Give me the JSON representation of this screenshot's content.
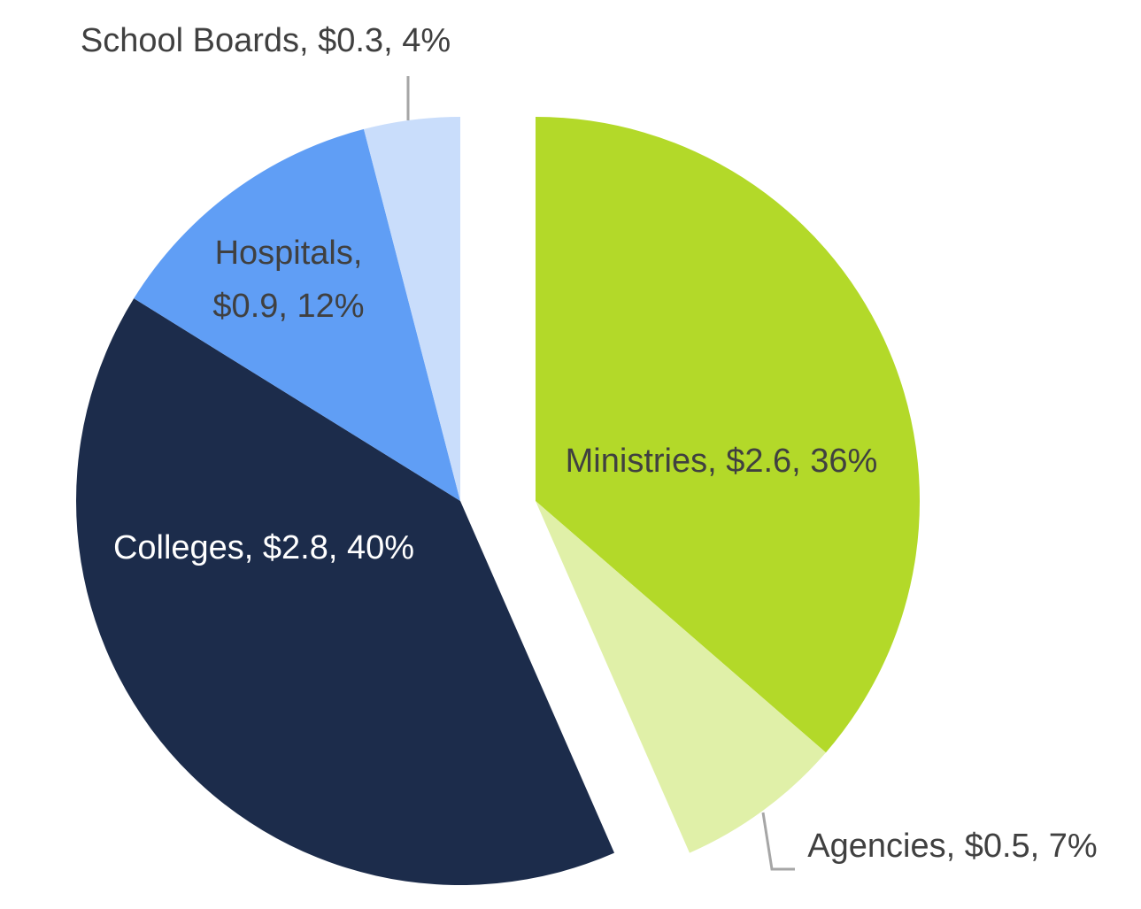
{
  "chart_data": {
    "type": "pie",
    "title": "",
    "units": "$",
    "slices": [
      {
        "name": "Ministries",
        "value": 2.6,
        "percent": 36,
        "color": "#b3d929",
        "label_color": "#404040",
        "exploded": true,
        "label_lines": [
          "Ministries, $2.6, 36%"
        ]
      },
      {
        "name": "Agencies",
        "value": 0.5,
        "percent": 7,
        "color": "#e0f0a8",
        "label_color": "#404040",
        "exploded": true,
        "label_lines": [
          "Agencies, $0.5, 7%"
        ]
      },
      {
        "name": "Colleges",
        "value": 2.8,
        "percent": 40,
        "color": "#1c2c4b",
        "label_color": "#ffffff",
        "exploded": false,
        "label_lines": [
          "Colleges, $2.8, 40%"
        ]
      },
      {
        "name": "Hospitals",
        "value": 0.9,
        "percent": 12,
        "color": "#609ef5",
        "label_color": "#404040",
        "exploded": false,
        "label_lines": [
          "Hospitals,",
          "$0.9, 12%"
        ]
      },
      {
        "name": "School Boards",
        "value": 0.3,
        "percent": 4,
        "color": "#c9ddfb",
        "label_color": "#404040",
        "exploded": false,
        "label_lines": [
          "School Boards, $0.3, 4%"
        ]
      }
    ],
    "start_angle": "12 o'clock",
    "direction": "clockwise",
    "legend": "none",
    "data_labels": "category, value, percent"
  }
}
